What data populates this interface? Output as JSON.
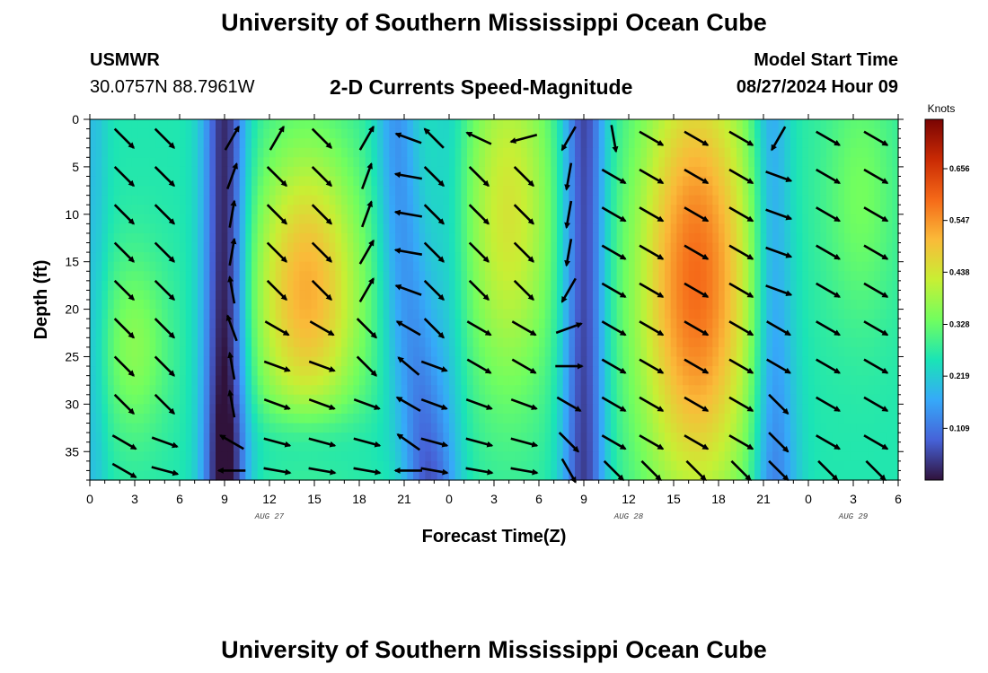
{
  "header": {
    "title": "University of Southern Mississippi Ocean Cube",
    "station": "USMWR",
    "coords": "30.0757N  88.7961W",
    "subtitle": "2-D Currents Speed-Magnitude",
    "model_start_label": "Model Start Time",
    "model_start_value": "08/27/2024 Hour 09"
  },
  "footer": {
    "title": "University of Southern Mississippi Ocean Cube"
  },
  "colors": {
    "arrow": "#000000",
    "colormap": [
      "#30123b",
      "#4662d8",
      "#36a9f9",
      "#1ae4b6",
      "#71fe5f",
      "#c8ef34",
      "#faba39",
      "#f56918",
      "#c92a04",
      "#7a0403"
    ]
  },
  "chart_data": {
    "type": "heatmap",
    "title": "2-D Currents Speed-Magnitude",
    "xlabel": "Forecast Time(Z)",
    "ylabel": "Depth (ft)",
    "x_range_hours": [
      0,
      54
    ],
    "y_range_ft": [
      0,
      38
    ],
    "x_tick_labels": [
      "0",
      "3",
      "6",
      "9",
      "12",
      "15",
      "18",
      "21",
      "0",
      "3",
      "6",
      "9",
      "12",
      "15",
      "18",
      "21",
      "0",
      "3",
      "6"
    ],
    "y_ticks": [
      0,
      5,
      10,
      15,
      20,
      25,
      30,
      35
    ],
    "date_labels": [
      {
        "hour": 12,
        "text": "AUG 27"
      },
      {
        "hour": 36,
        "text": "AUG 28"
      },
      {
        "hour": 51,
        "text": "AUG 29"
      }
    ],
    "colorbar": {
      "unit": "Knots",
      "min": 0.0,
      "max": 0.76,
      "ticks": [
        0.109,
        0.219,
        0.328,
        0.438,
        0.547,
        0.656
      ]
    },
    "arrow_hours": [
      2.3,
      5.0,
      9.5,
      12.5,
      15.5,
      18.5,
      21.3,
      23.0,
      26.0,
      29.0,
      32.0,
      35.0,
      37.5,
      40.5,
      43.5,
      46.0,
      49.3,
      52.5
    ],
    "arrow_depths_ft": [
      2,
      6,
      10,
      14,
      18,
      22,
      26,
      30,
      34,
      37
    ],
    "arrow_directions_deg": [
      [
        -45,
        -45,
        60,
        60,
        -45,
        60,
        160,
        135,
        155,
        195,
        -120,
        -80,
        -30,
        -30,
        -30,
        -120,
        -30,
        -30
      ],
      [
        -45,
        -45,
        70,
        -45,
        -45,
        70,
        170,
        -45,
        -45,
        -45,
        -100,
        -30,
        -30,
        -30,
        -30,
        -20,
        -30,
        -30
      ],
      [
        -45,
        -45,
        80,
        -45,
        -45,
        70,
        170,
        -45,
        -45,
        -45,
        -100,
        -30,
        -30,
        -30,
        -30,
        -20,
        -30,
        -30
      ],
      [
        -45,
        -45,
        80,
        -45,
        -45,
        60,
        170,
        -45,
        -45,
        -45,
        -100,
        -30,
        -30,
        -30,
        -30,
        -20,
        -30,
        -30
      ],
      [
        -45,
        -45,
        100,
        -45,
        -45,
        60,
        160,
        -45,
        -45,
        -45,
        -120,
        -30,
        -30,
        -30,
        -30,
        -20,
        -30,
        -30
      ],
      [
        -45,
        -45,
        110,
        -30,
        -30,
        -45,
        150,
        -45,
        -30,
        -30,
        20,
        -30,
        -30,
        -30,
        -30,
        -30,
        -30,
        -30
      ],
      [
        -45,
        -45,
        100,
        -20,
        -20,
        -45,
        140,
        -20,
        -30,
        -30,
        0,
        -30,
        -30,
        -30,
        -30,
        -30,
        -30,
        -30
      ],
      [
        -45,
        -45,
        100,
        -20,
        -20,
        -20,
        150,
        -20,
        -20,
        -20,
        -30,
        -30,
        -30,
        -30,
        -30,
        -45,
        -30,
        -30
      ],
      [
        -30,
        -20,
        150,
        -15,
        -15,
        -15,
        145,
        -15,
        -15,
        -15,
        -45,
        -30,
        -30,
        -30,
        -30,
        -45,
        -30,
        -30
      ],
      [
        -30,
        -15,
        180,
        -10,
        -10,
        -10,
        180,
        -10,
        -10,
        -10,
        -60,
        -45,
        -45,
        -45,
        -45,
        -45,
        -45,
        -45
      ]
    ]
  }
}
